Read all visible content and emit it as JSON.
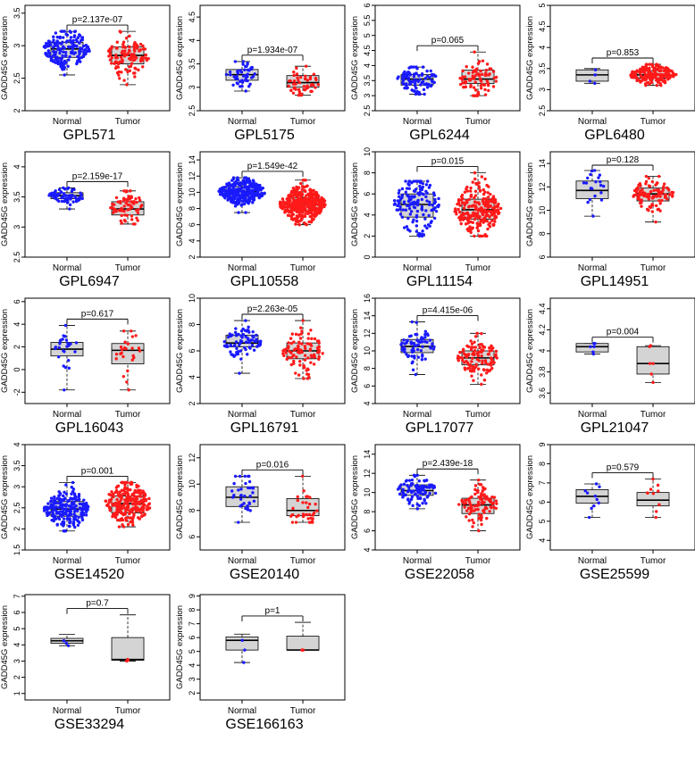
{
  "ylabel": "GADD45G expression",
  "colors": {
    "normal": "#1a1aff",
    "tumor": "#ff1a1a",
    "box_fill": "#d4d4d4"
  },
  "chart_data": [
    {
      "type": "box",
      "title": "GPL571",
      "pvalue": "p=2.137e-07",
      "categories": [
        "Normal",
        "Tumor"
      ],
      "ylabel": "GADD45G expression",
      "ylim": [
        2.0,
        3.62
      ],
      "yticks": [
        2.0,
        2.5,
        3.0,
        3.5
      ],
      "series": [
        {
          "name": "Normal",
          "min": 2.55,
          "q1": 2.82,
          "median": 2.95,
          "q3": 3.05,
          "max": 3.22,
          "n": 170
        },
        {
          "name": "Tumor",
          "min": 2.4,
          "q1": 2.72,
          "median": 2.85,
          "q3": 2.98,
          "max": 3.22,
          "n": 110
        }
      ]
    },
    {
      "type": "box",
      "title": "GPL5175",
      "pvalue": "p=1.934e-07",
      "categories": [
        "Normal",
        "Tumor"
      ],
      "ylabel": "GADD45G expression",
      "ylim": [
        2.5,
        4.75
      ],
      "yticks": [
        2.5,
        3.0,
        3.5,
        4.0,
        4.5
      ],
      "series": [
        {
          "name": "Normal",
          "min": 2.92,
          "q1": 3.15,
          "median": 3.27,
          "q3": 3.38,
          "max": 3.55,
          "n": 50
        },
        {
          "name": "Tumor",
          "min": 2.83,
          "q1": 3.0,
          "median": 3.1,
          "q3": 3.25,
          "max": 3.45,
          "n": 50
        }
      ]
    },
    {
      "type": "box",
      "title": "GPL6244",
      "pvalue": "p=0.065",
      "categories": [
        "Normal",
        "Tumor"
      ],
      "ylabel": "GADD45G expression",
      "ylim": [
        2.5,
        6.0
      ],
      "yticks": [
        2.5,
        3.0,
        3.5,
        4.0,
        4.5,
        5.0,
        5.5,
        6.0
      ],
      "series": [
        {
          "name": "Normal",
          "min": 3.05,
          "q1": 3.35,
          "median": 3.55,
          "q3": 3.7,
          "max": 3.95,
          "n": 95
        },
        {
          "name": "Tumor",
          "min": 3.0,
          "q1": 3.4,
          "median": 3.55,
          "q3": 3.85,
          "max": 4.45,
          "n": 85
        }
      ]
    },
    {
      "type": "box",
      "title": "GPL6480",
      "pvalue": "p=0.853",
      "categories": [
        "Normal",
        "Tumor"
      ],
      "ylabel": "GADD45G expression",
      "ylim": [
        2.5,
        5.0
      ],
      "yticks": [
        2.5,
        3.0,
        3.5,
        4.0,
        4.5,
        5.0
      ],
      "series": [
        {
          "name": "Normal",
          "min": 3.15,
          "q1": 3.2,
          "median": 3.35,
          "q3": 3.47,
          "max": 3.5,
          "n": 4
        },
        {
          "name": "Tumor",
          "min": 3.1,
          "q1": 3.27,
          "median": 3.35,
          "q3": 3.45,
          "max": 3.6,
          "n": 200
        }
      ]
    },
    {
      "type": "box",
      "title": "GPL6947",
      "pvalue": "p=2.159e-17",
      "categories": [
        "Normal",
        "Tumor"
      ],
      "ylabel": "GADD45G expression",
      "ylim": [
        2.5,
        4.25
      ],
      "yticks": [
        2.5,
        3.0,
        3.5,
        4.0
      ],
      "series": [
        {
          "name": "Normal",
          "min": 3.3,
          "q1": 3.47,
          "median": 3.52,
          "q3": 3.57,
          "max": 3.65,
          "n": 70
        },
        {
          "name": "Tumor",
          "min": 3.05,
          "q1": 3.2,
          "median": 3.3,
          "q3": 3.42,
          "max": 3.6,
          "n": 70
        }
      ]
    },
    {
      "type": "box",
      "title": "GPL10558",
      "pvalue": "p=1.549e-42",
      "categories": [
        "Normal",
        "Tumor"
      ],
      "ylabel": "GADD45G expression",
      "ylim": [
        2,
        15
      ],
      "yticks": [
        2,
        4,
        6,
        8,
        10,
        12,
        14
      ],
      "series": [
        {
          "name": "Normal",
          "min": 7.5,
          "q1": 9.5,
          "median": 10.1,
          "q3": 10.7,
          "max": 11.8,
          "n": 300
        },
        {
          "name": "Tumor",
          "min": 6.0,
          "q1": 7.7,
          "median": 8.5,
          "q3": 9.3,
          "max": 11.5,
          "n": 380
        }
      ]
    },
    {
      "type": "box",
      "title": "GPL11154",
      "pvalue": "p=0.015",
      "categories": [
        "Normal",
        "Tumor"
      ],
      "ylabel": "GADD45G expression",
      "ylim": [
        0,
        10
      ],
      "yticks": [
        0,
        2,
        4,
        6,
        8,
        10
      ],
      "series": [
        {
          "name": "Normal",
          "min": 2.0,
          "q1": 3.8,
          "median": 5.0,
          "q3": 6.0,
          "max": 7.2,
          "n": 150
        },
        {
          "name": "Tumor",
          "min": 2.0,
          "q1": 3.6,
          "median": 4.5,
          "q3": 5.5,
          "max": 8.0,
          "n": 240
        }
      ]
    },
    {
      "type": "box",
      "title": "GPL14951",
      "pvalue": "p=0.128",
      "categories": [
        "Normal",
        "Tumor"
      ],
      "ylabel": "GADD45G expression",
      "ylim": [
        6,
        15
      ],
      "yticks": [
        6,
        8,
        10,
        12,
        14
      ],
      "series": [
        {
          "name": "Normal",
          "min": 9.5,
          "q1": 11.0,
          "median": 11.7,
          "q3": 12.5,
          "max": 13.4,
          "n": 20
        },
        {
          "name": "Tumor",
          "min": 9.0,
          "q1": 10.8,
          "median": 11.4,
          "q3": 11.9,
          "max": 12.9,
          "n": 100
        }
      ]
    },
    {
      "type": "box",
      "title": "GPL16043",
      "pvalue": "p=0.617",
      "categories": [
        "Normal",
        "Tumor"
      ],
      "ylabel": "GADD45G expression",
      "ylim": [
        -3,
        6.3
      ],
      "yticks": [
        -2,
        0,
        2,
        4,
        6
      ],
      "series": [
        {
          "name": "Normal",
          "min": -1.8,
          "q1": 1.2,
          "median": 1.8,
          "q3": 2.4,
          "max": 3.9,
          "n": 25
        },
        {
          "name": "Tumor",
          "min": -1.8,
          "q1": 0.5,
          "median": 1.7,
          "q3": 2.3,
          "max": 3.4,
          "n": 25
        }
      ]
    },
    {
      "type": "box",
      "title": "GPL16791",
      "pvalue": "p=2.263e-05",
      "categories": [
        "Normal",
        "Tumor"
      ],
      "ylabel": "GADD45G expression",
      "ylim": [
        2,
        10
      ],
      "yticks": [
        2,
        4,
        6,
        8,
        10
      ],
      "series": [
        {
          "name": "Normal",
          "min": 4.3,
          "q1": 6.3,
          "median": 6.6,
          "q3": 7.2,
          "max": 8.3,
          "n": 80
        },
        {
          "name": "Tumor",
          "min": 3.9,
          "q1": 5.4,
          "median": 6.0,
          "q3": 6.6,
          "max": 8.3,
          "n": 100
        }
      ]
    },
    {
      "type": "box",
      "title": "GPL17077",
      "pvalue": "p=4.415e-06",
      "categories": [
        "Normal",
        "Tumor"
      ],
      "ylabel": "GADD45G expression",
      "ylim": [
        4,
        16
      ],
      "yticks": [
        4,
        6,
        8,
        10,
        12,
        14,
        16
      ],
      "series": [
        {
          "name": "Normal",
          "min": 7.3,
          "q1": 9.8,
          "median": 10.5,
          "q3": 11.3,
          "max": 13.3,
          "n": 70
        },
        {
          "name": "Tumor",
          "min": 6.2,
          "q1": 8.4,
          "median": 9.2,
          "q3": 10.0,
          "max": 12.0,
          "n": 110
        }
      ]
    },
    {
      "type": "box",
      "title": "GPL21047",
      "pvalue": "p=0.004",
      "categories": [
        "Normal",
        "Tumor"
      ],
      "ylabel": "GADD45G expression",
      "ylim": [
        3.5,
        4.5
      ],
      "yticks": [
        3.6,
        3.8,
        4.0,
        4.2,
        4.4
      ],
      "series": [
        {
          "name": "Normal",
          "min": 3.97,
          "q1": 3.99,
          "median": 4.04,
          "q3": 4.07,
          "max": 4.07,
          "n": 6
        },
        {
          "name": "Tumor",
          "min": 3.7,
          "q1": 3.78,
          "median": 3.88,
          "q3": 4.04,
          "max": 4.05,
          "n": 6
        }
      ]
    },
    {
      "type": "box",
      "title": "GSE14520",
      "pvalue": "p=0.001",
      "categories": [
        "Normal",
        "Tumor"
      ],
      "ylabel": "GADD45G expression",
      "ylim": [
        1.5,
        4.0
      ],
      "yticks": [
        1.5,
        2.0,
        2.5,
        3.0,
        3.5,
        4.0
      ],
      "series": [
        {
          "name": "Normal",
          "min": 1.95,
          "q1": 2.3,
          "median": 2.47,
          "q3": 2.65,
          "max": 3.1,
          "n": 230
        },
        {
          "name": "Tumor",
          "min": 2.05,
          "q1": 2.38,
          "median": 2.6,
          "q3": 2.78,
          "max": 3.1,
          "n": 250
        }
      ]
    },
    {
      "type": "box",
      "title": "GSE20140",
      "pvalue": "p=0.016",
      "categories": [
        "Normal",
        "Tumor"
      ],
      "ylabel": "GADD45G expression",
      "ylim": [
        5,
        13
      ],
      "yticks": [
        6,
        8,
        10,
        12
      ],
      "series": [
        {
          "name": "Normal",
          "min": 7.1,
          "q1": 8.3,
          "median": 9.0,
          "q3": 9.8,
          "max": 10.6,
          "n": 35
        },
        {
          "name": "Tumor",
          "min": 7.1,
          "q1": 7.6,
          "median": 8.0,
          "q3": 8.9,
          "max": 10.6,
          "n": 35
        }
      ]
    },
    {
      "type": "box",
      "title": "GSE22058",
      "pvalue": "p=2.439e-18",
      "categories": [
        "Normal",
        "Tumor"
      ],
      "ylabel": "GADD45G expression",
      "ylim": [
        4,
        15
      ],
      "yticks": [
        4,
        6,
        8,
        10,
        12,
        14
      ],
      "series": [
        {
          "name": "Normal",
          "min": 8.3,
          "q1": 9.7,
          "median": 10.2,
          "q3": 10.8,
          "max": 11.8,
          "n": 95
        },
        {
          "name": "Tumor",
          "min": 6.0,
          "q1": 7.8,
          "median": 8.7,
          "q3": 9.4,
          "max": 11.3,
          "n": 95
        }
      ]
    },
    {
      "type": "box",
      "title": "GSE25599",
      "pvalue": "p=0.579",
      "categories": [
        "Normal",
        "Tumor"
      ],
      "ylabel": "GADD45G expression",
      "ylim": [
        3.5,
        9
      ],
      "yticks": [
        4,
        5,
        6,
        7,
        8,
        9
      ],
      "series": [
        {
          "name": "Normal",
          "min": 5.2,
          "q1": 5.95,
          "median": 6.3,
          "q3": 6.65,
          "max": 6.95,
          "n": 10
        },
        {
          "name": "Tumor",
          "min": 5.2,
          "q1": 5.8,
          "median": 6.1,
          "q3": 6.5,
          "max": 7.2,
          "n": 10
        }
      ]
    },
    {
      "type": "box",
      "title": "GSE33294",
      "pvalue": "p=0.7",
      "categories": [
        "Normal",
        "Tumor"
      ],
      "ylabel": "GADD45G expression",
      "ylim": [
        0.6,
        7.1
      ],
      "yticks": [
        1,
        2,
        3,
        4,
        5,
        6,
        7
      ],
      "series": [
        {
          "name": "Normal",
          "min": 3.95,
          "q1": 4.1,
          "median": 4.25,
          "q3": 4.4,
          "max": 4.65,
          "n": 3
        },
        {
          "name": "Tumor",
          "min": 3.0,
          "q1": 3.05,
          "median": 3.1,
          "q3": 4.45,
          "max": 5.85,
          "n": 3
        }
      ]
    },
    {
      "type": "box",
      "title": "GSE166163",
      "pvalue": "p=1",
      "categories": [
        "Normal",
        "Tumor"
      ],
      "ylabel": "GADD45G expression",
      "ylim": [
        1.5,
        9.1
      ],
      "yticks": [
        2,
        3,
        4,
        5,
        6,
        7,
        8,
        9
      ],
      "series": [
        {
          "name": "Normal",
          "min": 4.2,
          "q1": 5.1,
          "median": 5.8,
          "q3": 6.05,
          "max": 6.25,
          "n": 3
        },
        {
          "name": "Tumor",
          "min": 5.1,
          "q1": 5.1,
          "median": 5.1,
          "q3": 6.1,
          "max": 7.1,
          "n": 3
        }
      ]
    }
  ]
}
